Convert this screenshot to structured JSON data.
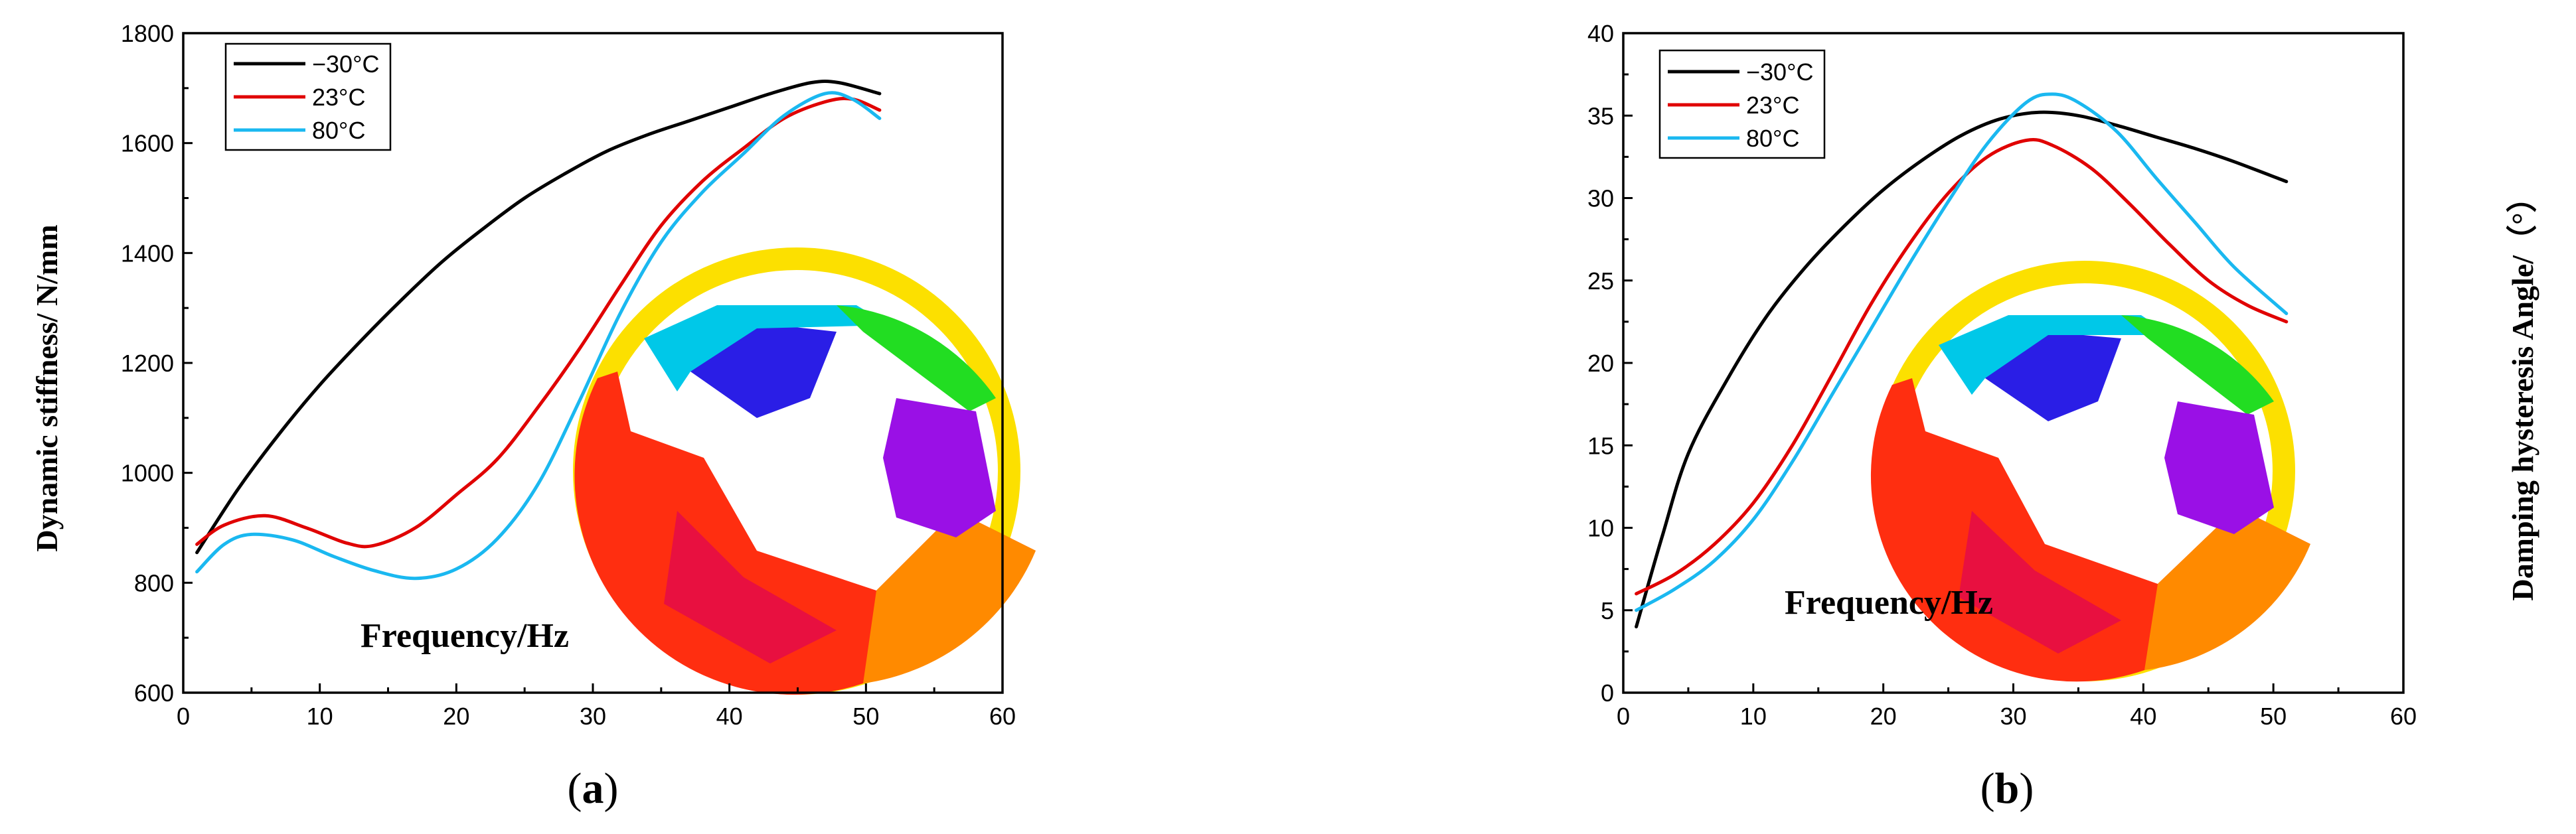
{
  "chart_data": [
    {
      "type": "line",
      "panel": "a",
      "title": "",
      "xlabel": "Frequency/Hz",
      "ylabel": "Dynamic stiffness/ N/mm",
      "xlim": [
        0,
        60
      ],
      "ylim": [
        600,
        1800
      ],
      "xticks": [
        0,
        10,
        20,
        30,
        40,
        50,
        60
      ],
      "yticks": [
        600,
        800,
        1000,
        1200,
        1400,
        1600,
        1800
      ],
      "xtick_labels": [
        "0",
        "10",
        "20",
        "30",
        "40",
        "50",
        "60"
      ],
      "ytick_labels": [
        "600",
        "800",
        "1000",
        "1200",
        "1400",
        "1600",
        "1800"
      ],
      "legend_position": "top-left",
      "caption_letter": "a",
      "series": [
        {
          "name": "−30°C",
          "color": "#000000",
          "x": [
            1,
            4,
            7,
            10,
            13,
            16,
            19,
            22,
            25,
            28,
            31,
            34,
            37,
            40,
            43,
            46,
            48,
            51
          ],
          "values": [
            855,
            970,
            1070,
            1160,
            1240,
            1315,
            1385,
            1445,
            1500,
            1545,
            1585,
            1615,
            1640,
            1665,
            1690,
            1710,
            1710,
            1690
          ]
        },
        {
          "name": "23°C",
          "color": "#e00000",
          "x": [
            1,
            3,
            6,
            9,
            12,
            14,
            17,
            20,
            23,
            26,
            29,
            32,
            35,
            38,
            41,
            44,
            47,
            49,
            51
          ],
          "values": [
            870,
            905,
            922,
            900,
            872,
            868,
            900,
            960,
            1025,
            1120,
            1225,
            1340,
            1450,
            1530,
            1590,
            1645,
            1675,
            1680,
            1660
          ]
        },
        {
          "name": "80°C",
          "color": "#1ab8f0",
          "x": [
            1,
            3,
            5,
            8,
            11,
            14,
            17,
            20,
            23,
            26,
            29,
            32,
            35,
            38,
            41,
            44,
            47,
            49,
            51
          ],
          "values": [
            820,
            870,
            888,
            878,
            848,
            822,
            808,
            825,
            880,
            980,
            1130,
            1290,
            1420,
            1510,
            1580,
            1650,
            1690,
            1680,
            1645
          ]
        }
      ]
    },
    {
      "type": "line",
      "panel": "b",
      "title": "",
      "xlabel": "Frequency/Hz",
      "ylabel": "Damping hysteresis Angle/（°）",
      "xlim": [
        0,
        60
      ],
      "ylim": [
        0,
        40
      ],
      "xticks": [
        0,
        10,
        20,
        30,
        40,
        50,
        60
      ],
      "yticks": [
        0,
        5,
        10,
        15,
        20,
        25,
        30,
        35,
        40
      ],
      "xtick_labels": [
        "0",
        "10",
        "20",
        "30",
        "40",
        "50",
        "60"
      ],
      "ytick_labels": [
        "0",
        "5",
        "10",
        "15",
        "20",
        "25",
        "30",
        "35",
        "40"
      ],
      "legend_position": "top-left",
      "caption_letter": "b",
      "series": [
        {
          "name": "−30°C",
          "color": "#000000",
          "x": [
            1,
            3,
            5,
            8,
            11,
            14,
            17,
            20,
            23,
            26,
            29,
            32,
            35,
            38,
            41,
            44,
            47,
            51
          ],
          "values": [
            4,
            9.5,
            14.5,
            19,
            22.8,
            25.8,
            28.3,
            30.5,
            32.3,
            33.8,
            34.8,
            35.2,
            35,
            34.4,
            33.7,
            33,
            32.2,
            31
          ]
        },
        {
          "name": "23°C",
          "color": "#e00000",
          "x": [
            1,
            4,
            7,
            10,
            13,
            16,
            19,
            22,
            25,
            28,
            31,
            33,
            36,
            39,
            42,
            45,
            48,
            51
          ],
          "values": [
            6,
            7.2,
            9,
            11.5,
            15,
            19.2,
            23.5,
            27.2,
            30.3,
            32.5,
            33.5,
            33.2,
            31.8,
            29.6,
            27.2,
            25,
            23.5,
            22.5
          ]
        },
        {
          "name": "80°C",
          "color": "#1ab8f0",
          "x": [
            1,
            4,
            7,
            10,
            13,
            16,
            19,
            22,
            25,
            28,
            31,
            33,
            35,
            38,
            41,
            44,
            47,
            51
          ],
          "values": [
            5,
            6.3,
            8,
            10.5,
            14,
            18,
            22,
            26,
            29.8,
            33.3,
            35.8,
            36.3,
            35.8,
            34,
            31.2,
            28.5,
            25.8,
            23
          ]
        }
      ]
    }
  ]
}
